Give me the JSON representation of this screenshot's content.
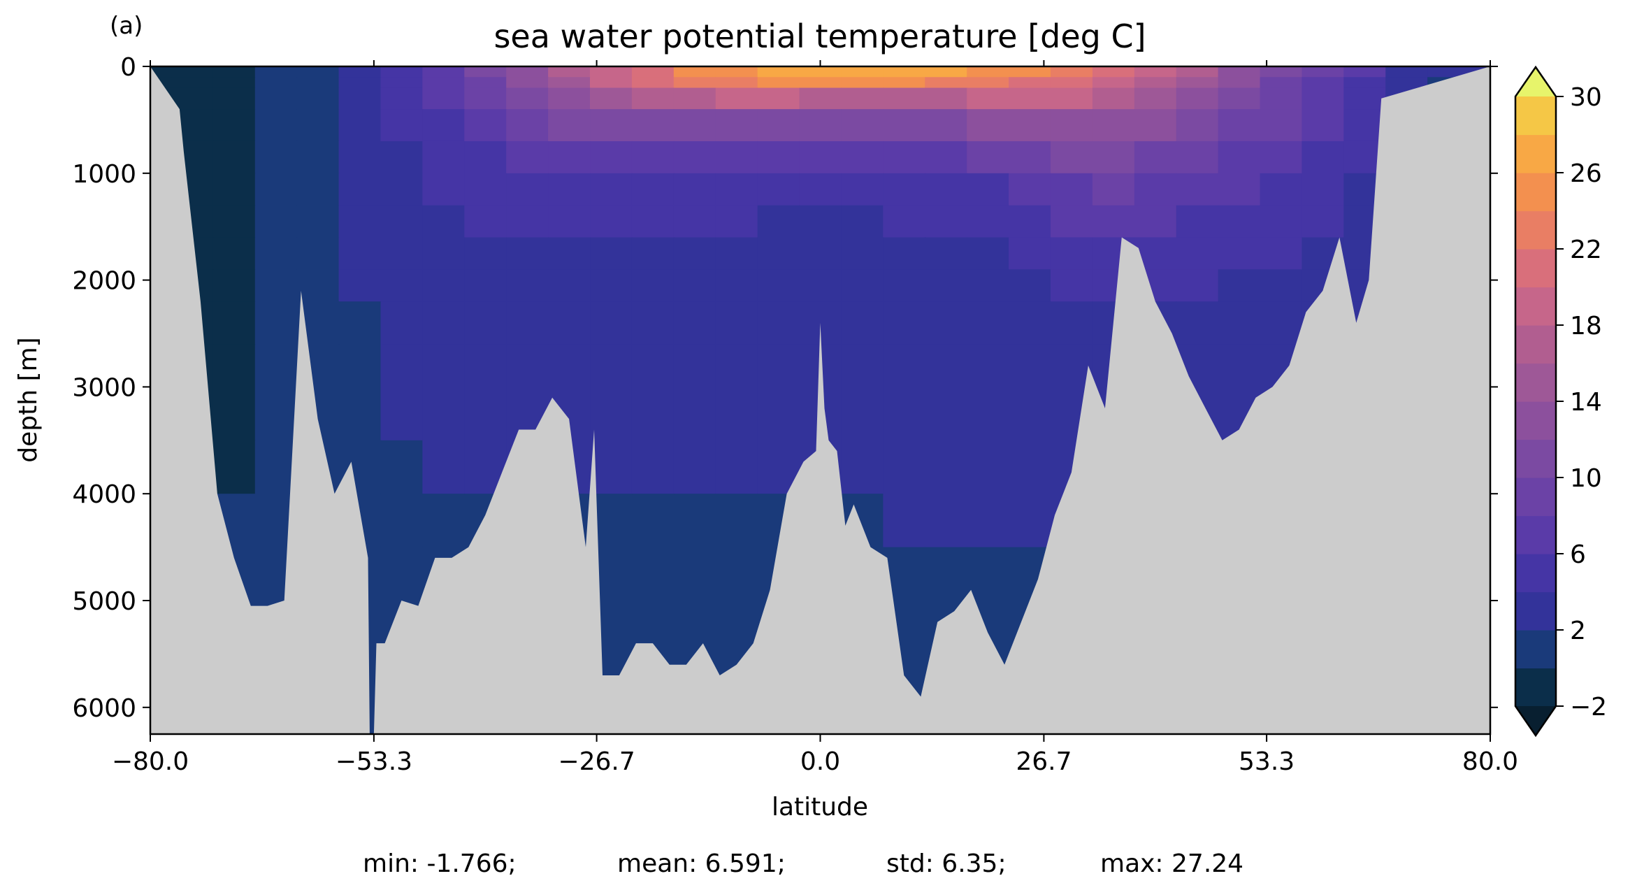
{
  "chart_data": {
    "type": "heatmap",
    "panel_label": "(a)",
    "title": "sea water potential temperature [deg C]",
    "xlabel": "latitude",
    "ylabel": "depth [m]",
    "xlim": [
      -80,
      80
    ],
    "ylim": [
      6250,
      0
    ],
    "y_inverted": true,
    "x_ticks": [
      "−80.0",
      "−53.3",
      "−26.7",
      "0.0",
      "26.7",
      "53.3",
      "80.0"
    ],
    "x_tick_values": [
      -80.0,
      -53.3,
      -26.7,
      0.0,
      26.7,
      53.3,
      80.0
    ],
    "y_ticks": [
      "0",
      "1000",
      "2000",
      "3000",
      "4000",
      "5000",
      "6000"
    ],
    "y_tick_values": [
      0,
      1000,
      2000,
      3000,
      4000,
      5000,
      6000
    ],
    "background_color": "#cccccc",
    "colorbar": {
      "levels": [
        -2,
        0,
        2,
        4,
        6,
        8,
        10,
        12,
        14,
        16,
        18,
        20,
        22,
        24,
        26,
        28,
        30
      ],
      "tick_labels": [
        "−2",
        "2",
        "6",
        "10",
        "14",
        "18",
        "22",
        "26",
        "30"
      ],
      "tick_values": [
        -2,
        2,
        6,
        10,
        14,
        18,
        22,
        26,
        30
      ],
      "extend": "both",
      "colors": [
        "#0b2e4a",
        "#1a3a7a",
        "#33339a",
        "#4535a5",
        "#5a3ba8",
        "#6b42a6",
        "#7b4aa2",
        "#8c509d",
        "#9e5897",
        "#b15e90",
        "#c6668a",
        "#d96f7b",
        "#e97e64",
        "#f3904f",
        "#f8a845",
        "#f5c746",
        "#ede45a",
        "#e6f36b"
      ],
      "under_color": "#081f30",
      "over_color": "#e7f46b"
    },
    "depth_levels": [
      0,
      100,
      200,
      400,
      700,
      1000,
      1300,
      1600,
      1900,
      2200,
      2600,
      3000,
      3500,
      4000,
      4500,
      5000,
      5500,
      6000,
      6250
    ],
    "latitude_bins": [
      -80,
      -77.5,
      -72.5,
      -67.5,
      -62.5,
      -57.5,
      -52.5,
      -47.5,
      -42.5,
      -37.5,
      -32.5,
      -27.5,
      -22.5,
      -17.5,
      -12.5,
      -7.5,
      -2.5,
      2.5,
      7.5,
      12.5,
      17.5,
      22.5,
      27.5,
      32.5,
      37.5,
      42.5,
      47.5,
      52.5,
      57.5,
      62.5,
      67.5,
      72.5,
      80
    ],
    "bathymetry": {
      "latitude": [
        -80,
        -76.5,
        -76,
        -74,
        -72,
        -70,
        -68,
        -66,
        -64,
        -62,
        -60,
        -58,
        -56,
        -54,
        -53.8,
        -53.3,
        -53,
        -52,
        -50,
        -48,
        -46,
        -44,
        -42,
        -40,
        -38,
        -36,
        -34,
        -32,
        -30,
        -28,
        -27,
        -26,
        -24,
        -22,
        -20,
        -18,
        -16,
        -14,
        -12,
        -10,
        -8,
        -6,
        -4,
        -2,
        -0.5,
        0,
        0.5,
        1,
        2,
        3,
        4,
        6,
        8,
        10,
        12,
        14,
        16,
        18,
        20,
        22,
        24,
        26,
        28,
        30,
        32,
        34,
        36,
        38,
        40,
        42,
        44,
        46,
        48,
        50,
        52,
        54,
        56,
        58,
        60,
        62,
        64,
        65.5,
        67,
        80
      ],
      "depth": [
        0,
        400,
        800,
        2200,
        4000,
        4600,
        5050,
        5050,
        5000,
        2100,
        3300,
        4000,
        3700,
        4600,
        6250,
        6250,
        5400,
        5400,
        5000,
        5050,
        4600,
        4600,
        4500,
        4200,
        3800,
        3400,
        3400,
        3100,
        3300,
        4500,
        3400,
        5700,
        5700,
        5400,
        5400,
        5600,
        5600,
        5400,
        5700,
        5600,
        5400,
        4900,
        4000,
        3700,
        3600,
        2400,
        3200,
        3500,
        3600,
        4300,
        4100,
        4500,
        4600,
        5700,
        5900,
        5200,
        5100,
        4900,
        5300,
        5600,
        5200,
        4800,
        4200,
        3800,
        2800,
        3200,
        1600,
        1700,
        2200,
        2500,
        2900,
        3200,
        3500,
        3400,
        3100,
        3000,
        2800,
        2300,
        2100,
        1600,
        2400,
        2000,
        300,
        0
      ]
    },
    "temperature": [
      [
        -1.9,
        -1.5,
        -1.2,
        0.5,
        1.5,
        3.5,
        5.5,
        7.5,
        10.5,
        13,
        16,
        19,
        21.5,
        24,
        25.5,
        26.5,
        27.2,
        27,
        26.5,
        26,
        25,
        24,
        22,
        20,
        18.5,
        16.5,
        13,
        10,
        8,
        6,
        3.5,
        2
      ],
      [
        -1.8,
        -1.5,
        -1.2,
        0.4,
        1.4,
        3.2,
        5,
        7,
        9.5,
        12.5,
        15,
        18,
        20,
        22,
        23,
        24,
        24.5,
        24.5,
        24,
        23.5,
        22.5,
        21.5,
        20,
        18.5,
        17,
        15,
        12,
        9.5,
        7.5,
        5.5,
        3,
        1.8
      ],
      [
        -1.7,
        -1.4,
        -1.1,
        0.3,
        1.3,
        3,
        4.5,
        6.5,
        8.5,
        11,
        13,
        15,
        16.5,
        17.5,
        18,
        18,
        17.5,
        17,
        17,
        17.5,
        18,
        18.5,
        18,
        17,
        15.5,
        13.5,
        11,
        9,
        7,
        5,
        2.8,
        1.6
      ],
      [
        -1.6,
        -1.3,
        -1,
        0.2,
        1.2,
        2.7,
        4,
        5.5,
        7,
        8.5,
        10,
        11,
        11.5,
        11.5,
        11,
        10.5,
        10,
        10,
        10.5,
        11,
        12,
        13,
        13.5,
        13,
        12,
        11,
        9.5,
        8,
        6,
        4.5,
        2.6,
        1.5
      ],
      [
        -1.5,
        -1.2,
        -0.9,
        0.1,
        1.1,
        2.5,
        3.5,
        4.5,
        5.5,
        6.5,
        7,
        7.5,
        7.5,
        7.3,
        7,
        6.8,
        6.5,
        6.5,
        6.8,
        7.2,
        8,
        9,
        10,
        10,
        9.5,
        8.5,
        7.5,
        6.5,
        5,
        4,
        2.5,
        1.4
      ],
      [
        -1.4,
        -1.1,
        -0.8,
        0,
        1,
        2.3,
        3.2,
        4,
        4.5,
        5,
        5.2,
        5.3,
        5.2,
        5,
        4.8,
        4.7,
        4.6,
        4.6,
        4.8,
        5,
        5.5,
        6.5,
        7.5,
        8,
        7.5,
        7,
        6,
        5.5,
        4.5,
        3.5,
        2.4,
        1.3
      ],
      [
        -1.3,
        -1,
        -0.7,
        0,
        0.9,
        2.2,
        3,
        3.6,
        4,
        4.2,
        4.3,
        4.3,
        4.2,
        4.1,
        4,
        3.9,
        3.9,
        3.9,
        4,
        4.2,
        4.5,
        5.2,
        6,
        6.5,
        6.3,
        5.8,
        5,
        4.6,
        4,
        3.2,
        2.3,
        1.2
      ],
      [
        -1.2,
        -0.9,
        -0.6,
        0,
        0.8,
        2.1,
        2.8,
        3.3,
        3.6,
        3.7,
        3.7,
        3.7,
        3.6,
        3.5,
        3.5,
        3.4,
        3.4,
        3.4,
        3.5,
        3.6,
        3.8,
        4.3,
        5,
        5.3,
        5.2,
        4.8,
        4.3,
        4,
        3.6,
        3,
        2.2,
        1.1
      ],
      [
        -1.1,
        -0.8,
        -0.5,
        0,
        0.7,
        2,
        2.6,
        3,
        3.2,
        3.3,
        3.3,
        3.3,
        3.2,
        3.2,
        3.1,
        3.1,
        3.1,
        3.1,
        3.1,
        3.2,
        3.4,
        3.7,
        4.2,
        4.5,
        4.4,
        4.1,
        3.8,
        3.6,
        3.3,
        2.8,
        2.1,
        1
      ],
      [
        -1,
        -0.7,
        -0.4,
        0,
        0.6,
        1.9,
        2.4,
        2.8,
        2.9,
        3,
        3,
        3,
        2.9,
        2.9,
        2.9,
        2.9,
        2.9,
        2.9,
        2.9,
        2.9,
        3,
        3.2,
        3.6,
        3.8,
        3.7,
        3.5,
        3.3,
        3.2,
        3,
        2.6,
        2,
        0.9
      ],
      [
        -0.9,
        -0.6,
        -0.3,
        0,
        0.5,
        1.8,
        2.2,
        2.5,
        2.6,
        2.6,
        2.6,
        2.6,
        2.6,
        2.6,
        2.6,
        2.6,
        2.6,
        2.6,
        2.6,
        2.6,
        2.7,
        2.8,
        3,
        3.1,
        3,
        2.9,
        2.8,
        2.8,
        2.7,
        2.4,
        1.9,
        0.8
      ],
      [
        -0.8,
        -0.5,
        -0.2,
        0,
        0.4,
        1.6,
        2,
        2.3,
        2.3,
        2.3,
        2.3,
        2.3,
        2.3,
        2.3,
        2.3,
        2.3,
        2.3,
        2.3,
        2.3,
        2.3,
        2.4,
        2.5,
        2.6,
        2.7,
        2.6,
        2.6,
        2.5,
        2.5,
        2.4,
        2.2,
        1.8,
        0.7
      ],
      [
        -0.7,
        -0.4,
        -0.1,
        0,
        0.3,
        1.4,
        1.7,
        2,
        2.1,
        2.1,
        2.1,
        2.1,
        2.1,
        2.1,
        2.1,
        2.1,
        2.1,
        2.1,
        2.1,
        2.1,
        2.2,
        2.3,
        2.3,
        2.4,
        2.3,
        2.3,
        2.2,
        2.2,
        2.2,
        2,
        1.7,
        0.6
      ],
      [
        -0.6,
        -0.3,
        0,
        0.1,
        0.3,
        1,
        1.3,
        1.6,
        1.8,
        1.8,
        1.8,
        1.8,
        1.5,
        1.5,
        1.5,
        1.5,
        1.5,
        1.9,
        2,
        2,
        2.1,
        2.1,
        2.1,
        2.2,
        2.1,
        2.1,
        2,
        2,
        2,
        1.8,
        1.6,
        0.5
      ],
      [
        -0.5,
        -0.2,
        0,
        0.1,
        0.2,
        0.8,
        1,
        1.2,
        1.4,
        1.4,
        1.4,
        1.4,
        1.2,
        1.2,
        1.2,
        1.2,
        1.2,
        1.4,
        1.5,
        1.6,
        1.8,
        1.9,
        2,
        2,
        2,
        2,
        1.9,
        1.9,
        1.9,
        1.7,
        1.5,
        0.4
      ],
      [
        -0.4,
        -0.1,
        0,
        0.1,
        0.2,
        0.6,
        0.8,
        1,
        1.1,
        1.1,
        1.1,
        1.1,
        1,
        1,
        1,
        1,
        1,
        1.1,
        1.1,
        1.2,
        1.4,
        1.6,
        1.7,
        1.8,
        1.8,
        1.8,
        1.8,
        1.8,
        1.8,
        1.6,
        1.4,
        0.3
      ],
      [
        -0.3,
        0,
        0,
        0.1,
        0.2,
        0.5,
        0.7,
        0.9,
        1,
        1,
        1,
        1,
        0.9,
        0.9,
        0.9,
        0.9,
        0.9,
        1,
        1,
        1.1,
        1.2,
        1.3,
        1.5,
        1.6,
        1.6,
        1.6,
        1.6,
        1.6,
        1.6,
        1.5,
        1.3,
        0.2
      ],
      [
        -0.2,
        0,
        0,
        0.1,
        0.2,
        0.5,
        0.6,
        0.8,
        0.9,
        0.9,
        0.9,
        0.9,
        0.8,
        0.8,
        0.8,
        0.8,
        0.8,
        0.9,
        0.9,
        1,
        1.1,
        1.2,
        1.4,
        1.5,
        1.5,
        1.5,
        1.5,
        1.5,
        1.5,
        1.4,
        1.2,
        0.1
      ]
    ],
    "statistics": {
      "min_label": "min: -1.766;",
      "mean_label": "mean: 6.591;",
      "std_label": "std: 6.35;",
      "max_label": "max: 27.24"
    }
  }
}
